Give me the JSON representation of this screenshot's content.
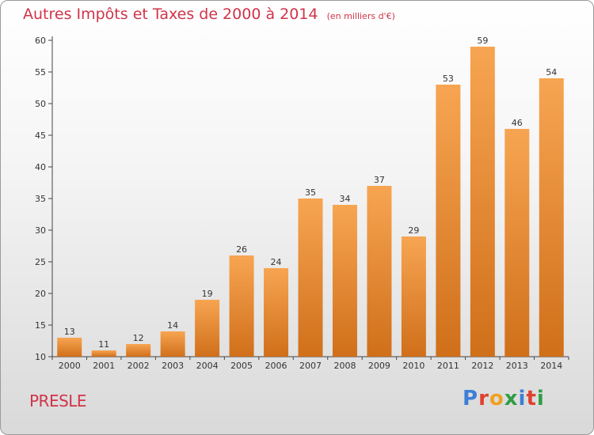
{
  "header": {
    "title": "Autres Impôts et Taxes de 2000 à 2014",
    "subtitle": "(en milliers d'€)"
  },
  "footer": {
    "place": "PRESLE",
    "logo": "Proxiti"
  },
  "colors": {
    "title": "#d0344a",
    "bar_light": "#f7a552",
    "bar_dark": "#d06f1a",
    "logo_letters": [
      "#3d7fd6",
      "#e0402e",
      "#f0a020",
      "#2f9e44",
      "#3d7fd6",
      "#e0402e",
      "#2f9e44"
    ]
  },
  "chart_data": {
    "type": "bar",
    "title": "Autres Impôts et Taxes de 2000 à 2014",
    "subtitle": "(en milliers d'€)",
    "categories": [
      "2000",
      "2001",
      "2002",
      "2003",
      "2004",
      "2005",
      "2006",
      "2007",
      "2008",
      "2009",
      "2010",
      "2011",
      "2012",
      "2013",
      "2014"
    ],
    "values": [
      13,
      11,
      12,
      14,
      19,
      26,
      24,
      35,
      34,
      37,
      29,
      53,
      59,
      46,
      54
    ],
    "ylim": [
      10,
      60
    ],
    "yticks": [
      10,
      15,
      20,
      25,
      30,
      35,
      40,
      45,
      50,
      55,
      60
    ],
    "grid": false,
    "data_labels": true
  }
}
